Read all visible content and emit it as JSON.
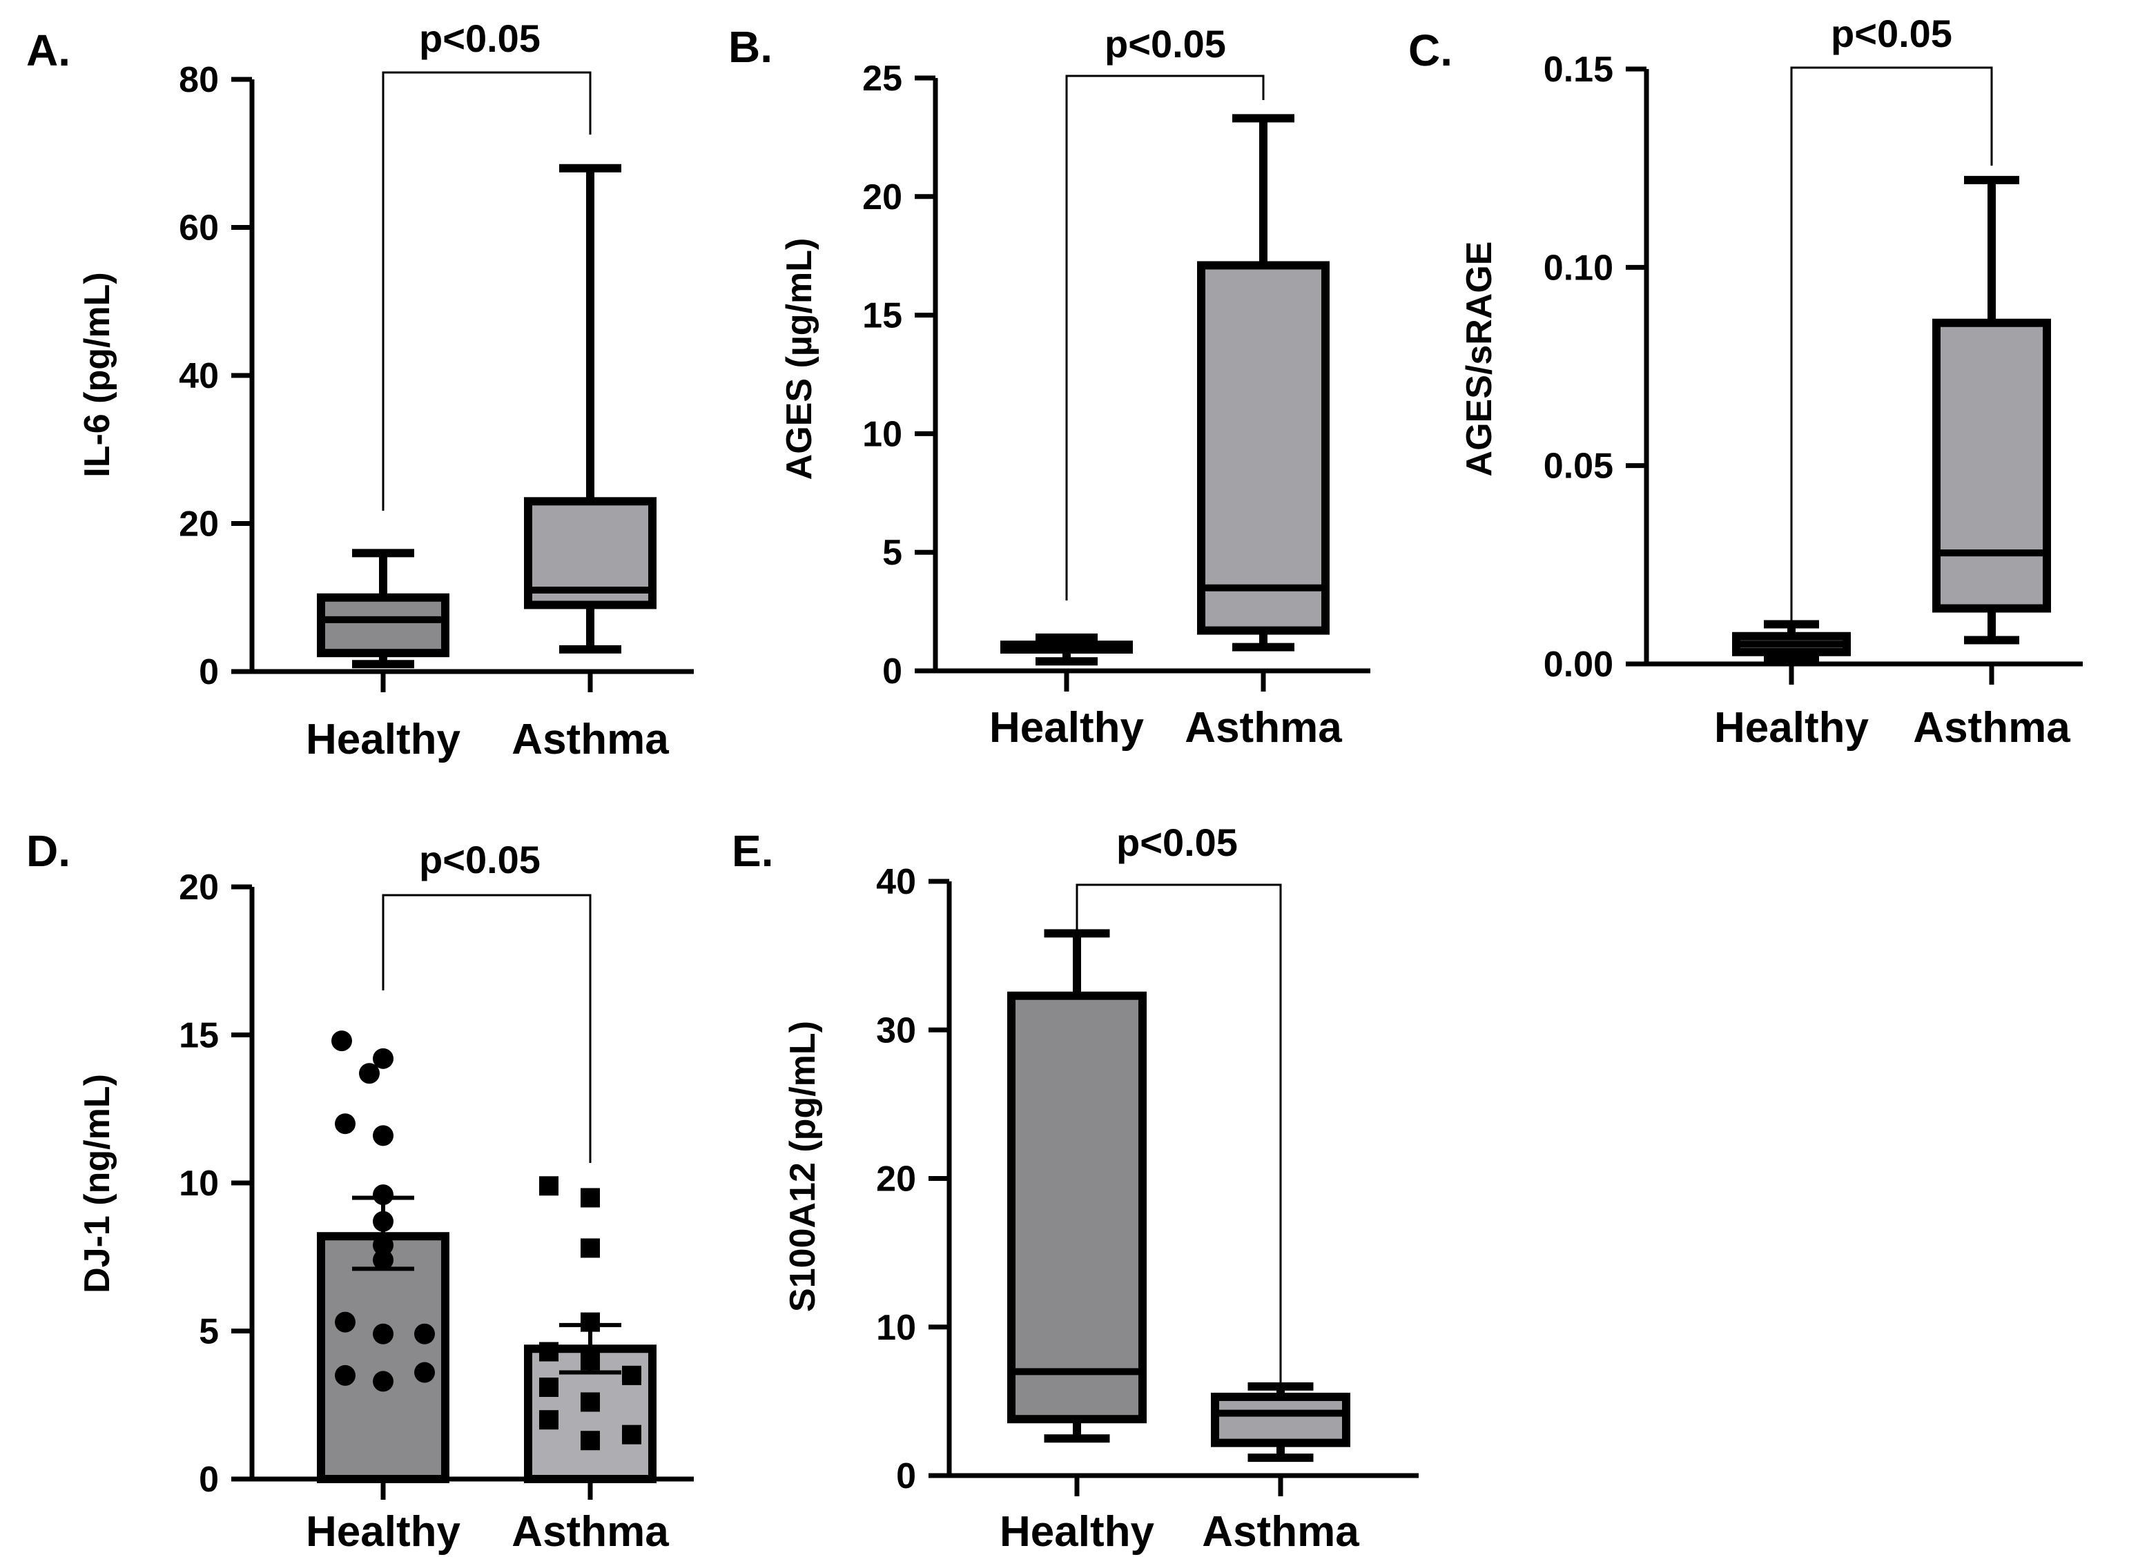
{
  "colors": {
    "healthy_fill": "#8a8a8c",
    "asthma_fill": "#a3a3a7",
    "asthma_fill_bar": "#adadb2",
    "axis": "#000000"
  },
  "chart_data": [
    {
      "panel": "A.",
      "type": "box",
      "ylabel": "IL-6 (pg/mL)",
      "ylim": [
        0,
        80
      ],
      "yticks": [
        0,
        20,
        40,
        60,
        80
      ],
      "categories": [
        "Healthy",
        "Asthma"
      ],
      "boxes": [
        {
          "min": 1,
          "q1": 2.5,
          "median": 7,
          "q3": 10,
          "max": 16
        },
        {
          "min": 3,
          "q1": 9,
          "median": 11,
          "q3": 23,
          "max": 68
        }
      ],
      "annotation": "p<0.05"
    },
    {
      "panel": "B.",
      "type": "box",
      "ylabel": "AGES (µg/mL)",
      "ylim": [
        0,
        25
      ],
      "yticks": [
        0,
        5,
        10,
        15,
        20,
        25
      ],
      "categories": [
        "Healthy",
        "Asthma"
      ],
      "boxes": [
        {
          "min": 0.4,
          "q1": 0.9,
          "median": 1.0,
          "q3": 1.1,
          "max": 1.4
        },
        {
          "min": 1.0,
          "q1": 1.7,
          "median": 3.5,
          "q3": 17.1,
          "max": 23.3
        }
      ],
      "annotation": "p<0.05"
    },
    {
      "panel": "C.",
      "type": "box",
      "ylabel": "AGES/sRAGE",
      "ylim": [
        0,
        0.15
      ],
      "yticks": [
        "0.00",
        "0.05",
        "0.10",
        "0.15"
      ],
      "categories": [
        "Healthy",
        "Asthma"
      ],
      "boxes": [
        {
          "min": 0.001,
          "q1": 0.003,
          "median": 0.005,
          "q3": 0.007,
          "max": 0.01
        },
        {
          "min": 0.006,
          "q1": 0.014,
          "median": 0.028,
          "q3": 0.086,
          "max": 0.122
        }
      ],
      "annotation": "p<0.05"
    },
    {
      "panel": "D.",
      "type": "bar",
      "ylabel": "DJ-1 (ng/mL)",
      "ylim": [
        0,
        20
      ],
      "yticks": [
        0,
        5,
        10,
        15,
        20
      ],
      "categories": [
        "Healthy",
        "Asthma"
      ],
      "bars": [
        {
          "mean": 8.2,
          "sem_low": 7.1,
          "sem_high": 9.5,
          "points": [
            14.8,
            14.2,
            13.7,
            12.0,
            11.6,
            9.6,
            8.7,
            7.9,
            7.4,
            5.3,
            4.9,
            4.9,
            3.6,
            3.5,
            3.3
          ]
        },
        {
          "mean": 4.4,
          "sem_low": 3.6,
          "sem_high": 5.2,
          "points": [
            9.9,
            9.5,
            7.8,
            5.3,
            4.3,
            4.0,
            3.5,
            3.1,
            2.6,
            2.0,
            1.5,
            1.3
          ]
        }
      ],
      "annotation": "p<0.05"
    },
    {
      "panel": "E.",
      "type": "box",
      "ylabel": "S100A12 (pg/mL)",
      "ylim": [
        0,
        40
      ],
      "yticks": [
        0,
        10,
        20,
        30,
        40
      ],
      "categories": [
        "Healthy",
        "Asthma"
      ],
      "boxes": [
        {
          "min": 2.5,
          "q1": 3.8,
          "median": 7.0,
          "q3": 32.3,
          "max": 36.5
        },
        {
          "min": 1.2,
          "q1": 2.2,
          "median": 4.2,
          "q3": 5.3,
          "max": 6.0
        }
      ],
      "annotation": "p<0.05"
    }
  ]
}
